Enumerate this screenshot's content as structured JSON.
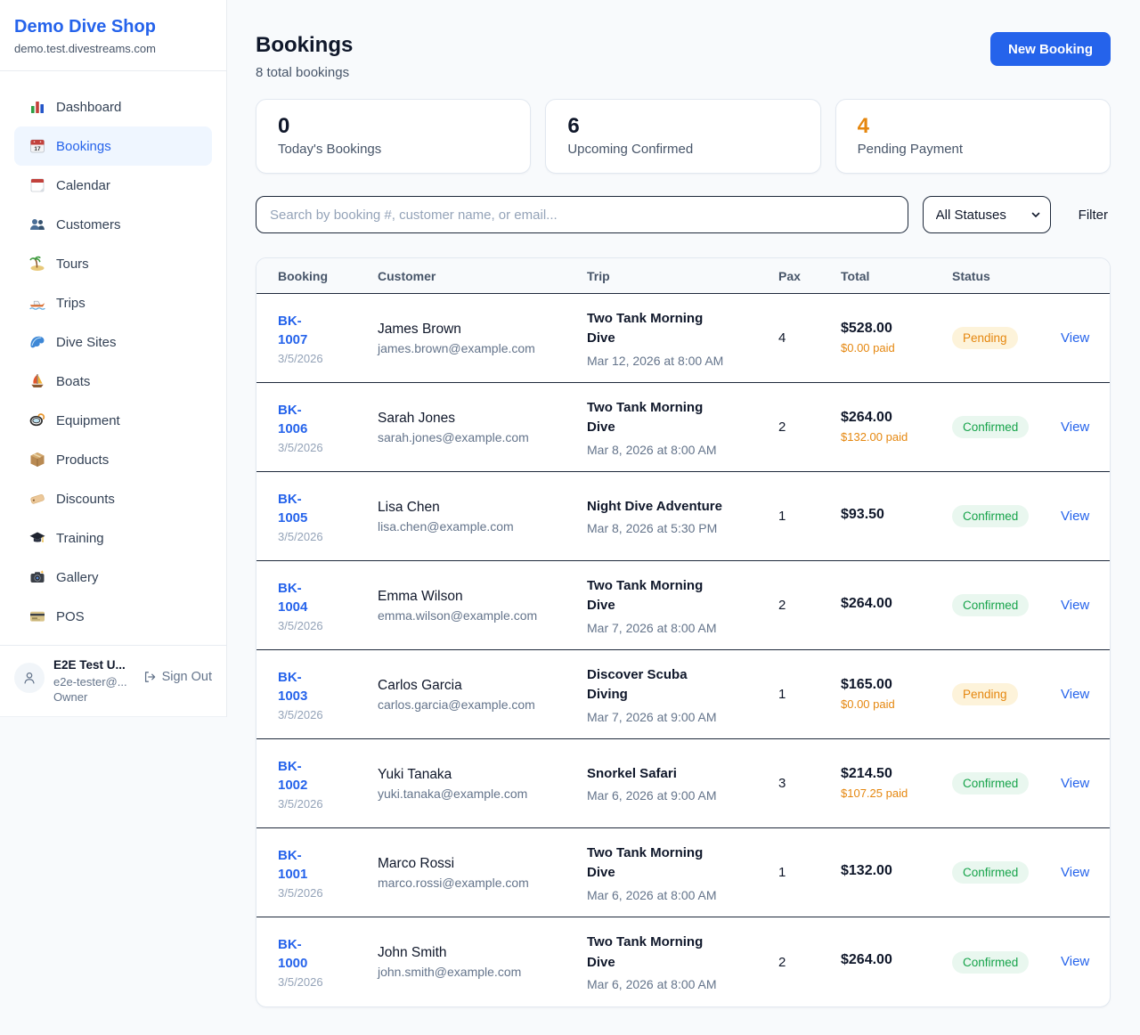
{
  "sidebar": {
    "shop_name": "Demo Dive Shop",
    "domain": "demo.test.divestreams.com",
    "items": [
      {
        "label": "Dashboard",
        "icon": "bar-chart",
        "active": false
      },
      {
        "label": "Bookings",
        "icon": "calendar",
        "active": true
      },
      {
        "label": "Calendar",
        "icon": "tear-off-calendar",
        "active": false
      },
      {
        "label": "Customers",
        "icon": "people",
        "active": false
      },
      {
        "label": "Tours",
        "icon": "island",
        "active": false
      },
      {
        "label": "Trips",
        "icon": "speedboat",
        "active": false
      },
      {
        "label": "Dive Sites",
        "icon": "wave",
        "active": false
      },
      {
        "label": "Boats",
        "icon": "sailboat",
        "active": false
      },
      {
        "label": "Equipment",
        "icon": "diving-mask",
        "active": false
      },
      {
        "label": "Products",
        "icon": "package",
        "active": false
      },
      {
        "label": "Discounts",
        "icon": "tag",
        "active": false
      },
      {
        "label": "Training",
        "icon": "graduation-cap",
        "active": false
      },
      {
        "label": "Gallery",
        "icon": "camera",
        "active": false
      },
      {
        "label": "POS",
        "icon": "credit-card",
        "active": false
      }
    ],
    "user": {
      "name": "E2E Test U...",
      "email": "e2e-tester@...",
      "role": "Owner",
      "sign_out_label": "Sign Out"
    }
  },
  "header": {
    "title": "Bookings",
    "subtitle": "8 total bookings",
    "new_booking_label": "New Booking"
  },
  "stats": [
    {
      "value": "0",
      "label": "Today's Bookings",
      "color": "#0f172a"
    },
    {
      "value": "6",
      "label": "Upcoming Confirmed",
      "color": "#0f172a"
    },
    {
      "value": "4",
      "label": "Pending Payment",
      "color": "#e5870f"
    }
  ],
  "filters": {
    "search_placeholder": "Search by booking #, customer name, or email...",
    "status_select_value": "All Statuses",
    "filter_label": "Filter"
  },
  "table": {
    "columns": [
      "Booking",
      "Customer",
      "Trip",
      "Pax",
      "Total",
      "Status"
    ],
    "view_label": "View",
    "rows": [
      {
        "id": "BK-1007",
        "date": "3/5/2026",
        "customer": "James Brown",
        "email": "james.brown@example.com",
        "trip": "Two Tank Morning Dive",
        "datetime": "Mar 12, 2026 at 8:00 AM",
        "pax": "4",
        "total": "$528.00",
        "paid": "$0.00 paid",
        "status": "Pending"
      },
      {
        "id": "BK-1006",
        "date": "3/5/2026",
        "customer": "Sarah Jones",
        "email": "sarah.jones@example.com",
        "trip": "Two Tank Morning Dive",
        "datetime": "Mar 8, 2026 at 8:00 AM",
        "pax": "2",
        "total": "$264.00",
        "paid": "$132.00 paid",
        "status": "Confirmed"
      },
      {
        "id": "BK-1005",
        "date": "3/5/2026",
        "customer": "Lisa Chen",
        "email": "lisa.chen@example.com",
        "trip": "Night Dive Adventure",
        "datetime": "Mar 8, 2026 at 5:30 PM",
        "pax": "1",
        "total": "$93.50",
        "paid": "",
        "status": "Confirmed"
      },
      {
        "id": "BK-1004",
        "date": "3/5/2026",
        "customer": "Emma Wilson",
        "email": "emma.wilson@example.com",
        "trip": "Two Tank Morning Dive",
        "datetime": "Mar 7, 2026 at 8:00 AM",
        "pax": "2",
        "total": "$264.00",
        "paid": "",
        "status": "Confirmed"
      },
      {
        "id": "BK-1003",
        "date": "3/5/2026",
        "customer": "Carlos Garcia",
        "email": "carlos.garcia@example.com",
        "trip": "Discover Scuba Diving",
        "datetime": "Mar 7, 2026 at 9:00 AM",
        "pax": "1",
        "total": "$165.00",
        "paid": "$0.00 paid",
        "status": "Pending"
      },
      {
        "id": "BK-1002",
        "date": "3/5/2026",
        "customer": "Yuki Tanaka",
        "email": "yuki.tanaka@example.com",
        "trip": "Snorkel Safari",
        "datetime": "Mar 6, 2026 at 9:00 AM",
        "pax": "3",
        "total": "$214.50",
        "paid": "$107.25 paid",
        "status": "Confirmed"
      },
      {
        "id": "BK-1001",
        "date": "3/5/2026",
        "customer": "Marco Rossi",
        "email": "marco.rossi@example.com",
        "trip": "Two Tank Morning Dive",
        "datetime": "Mar 6, 2026 at 8:00 AM",
        "pax": "1",
        "total": "$132.00",
        "paid": "",
        "status": "Confirmed"
      },
      {
        "id": "BK-1000",
        "date": "3/5/2026",
        "customer": "John Smith",
        "email": "john.smith@example.com",
        "trip": "Two Tank Morning Dive",
        "datetime": "Mar 6, 2026 at 8:00 AM",
        "pax": "2",
        "total": "$264.00",
        "paid": "",
        "status": "Confirmed"
      }
    ]
  },
  "colors": {
    "accent": "#2563eb",
    "amber": "#e5870f",
    "statuses": {
      "Pending": {
        "bg": "#fdf3da",
        "fg": "#e5870f"
      },
      "Confirmed": {
        "bg": "#e9f7ef",
        "fg": "#16a34a"
      }
    }
  }
}
